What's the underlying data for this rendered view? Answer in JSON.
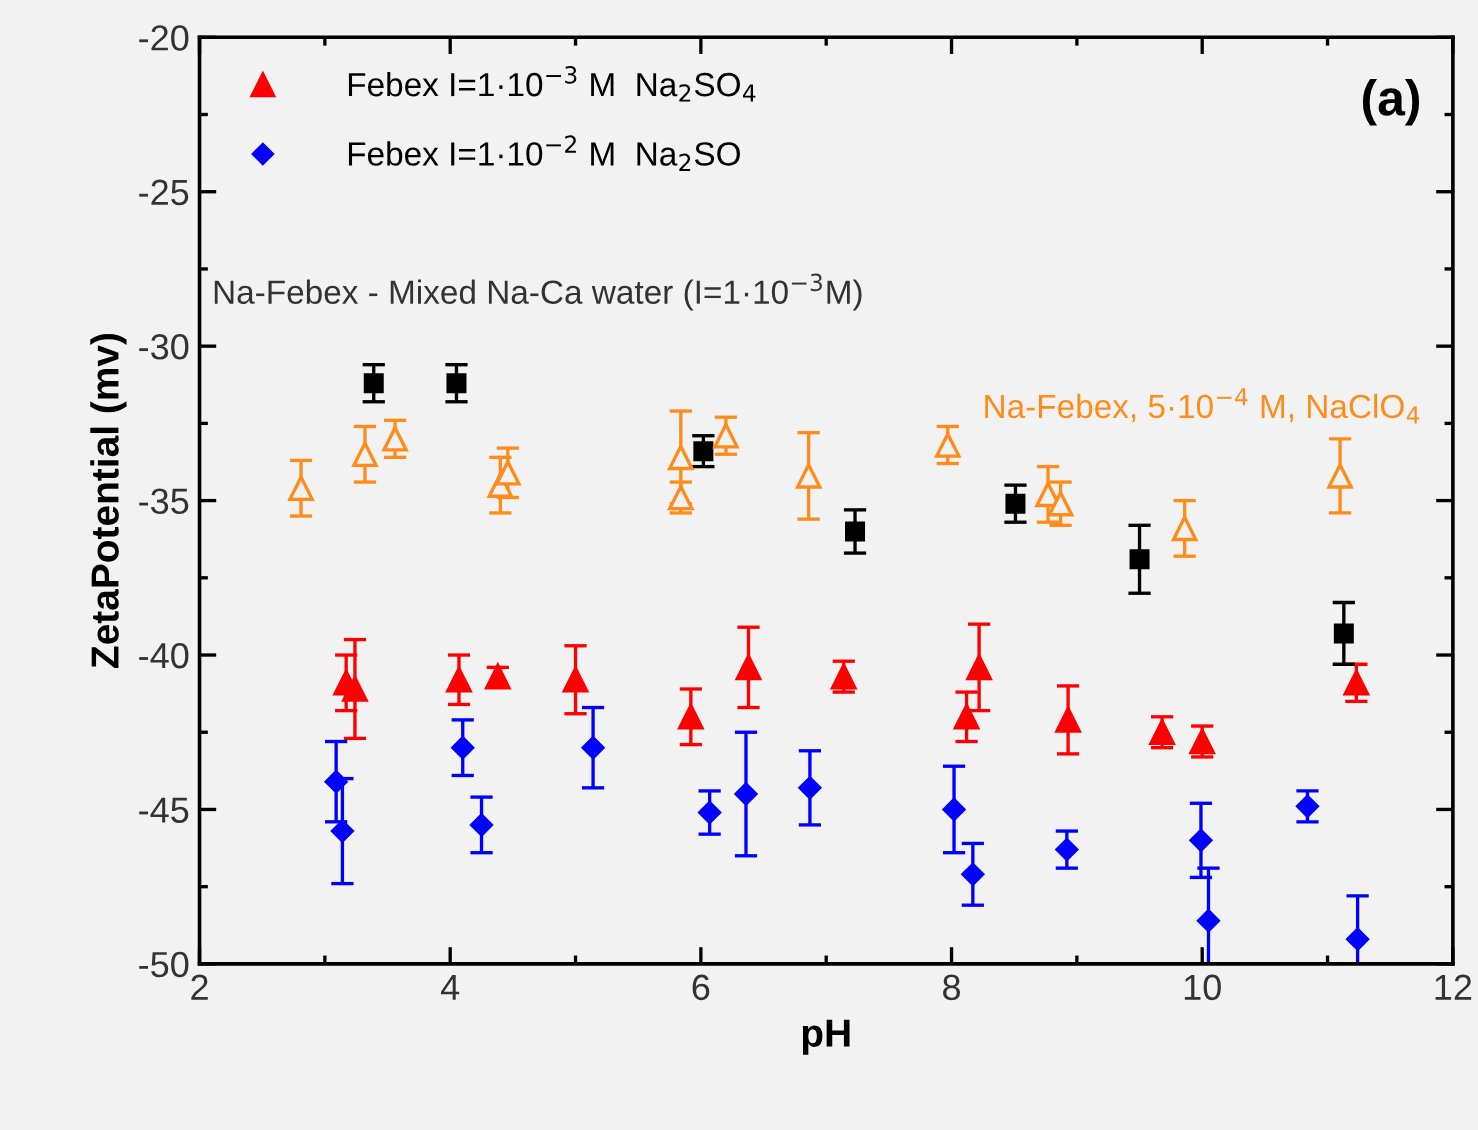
{
  "chart_data": {
    "type": "scatter",
    "xlabel": "pH",
    "ylabel": "ZetaPotential (mv)",
    "xlim": [
      2,
      12
    ],
    "xticks": [
      2,
      4,
      6,
      8,
      10,
      12
    ],
    "ylim": [
      -50,
      -20
    ],
    "yticks": [
      -50,
      -45,
      -40,
      -35,
      -30,
      -25,
      -20
    ],
    "grid": false,
    "legend": "top left",
    "annotations": [
      "(a)",
      "Na-Febex - Mixed Na-Ca water (I=1·10$^{−3}$M)",
      "Na-Febex, 5·10$^{−4}$ M, NaClO$_{4}$"
    ],
    "series": [
      {
        "name": "Febex I=1·10$^{−3}$ M  Na$_{2}$SO$_{4}$",
        "color": "#ff0000",
        "marker": "triangle",
        "x": [
          3.17,
          3.24,
          4.07,
          4.38,
          5.0,
          5.92,
          6.38,
          7.14,
          8.12,
          8.22,
          8.93,
          9.68,
          10.0,
          11.23
        ],
        "values": [
          -40.9,
          -41.1,
          -40.8,
          -40.7,
          -40.8,
          -42.0,
          -40.4,
          -40.7,
          -42.0,
          -40.4,
          -42.1,
          -42.5,
          -42.8,
          -40.9
        ],
        "errors": [
          0.9,
          1.6,
          0.8,
          0.3,
          1.1,
          0.9,
          1.3,
          0.5,
          0.8,
          1.4,
          1.1,
          0.5,
          0.5,
          0.6
        ]
      },
      {
        "name": "Febex I=1·10$^{−2}$ M  Na$_{2}$SO",
        "color": "#0000ff",
        "marker": "diamond",
        "x": [
          3.09,
          3.14,
          4.1,
          4.25,
          5.14,
          6.07,
          6.36,
          6.87,
          8.02,
          8.17,
          8.92,
          9.99,
          10.05,
          10.84,
          11.24
        ],
        "values": [
          -44.1,
          -45.7,
          -43.0,
          -45.5,
          -43.0,
          -45.1,
          -44.5,
          -44.3,
          -45.0,
          -47.1,
          -46.3,
          -46.0,
          -48.6,
          -44.9,
          -49.2
        ],
        "errors": [
          1.3,
          1.7,
          0.9,
          0.9,
          1.3,
          0.7,
          2.0,
          1.2,
          1.4,
          1.0,
          0.6,
          1.2,
          [
            -50,
            -46.9
          ],
          0.5,
          [
            -50,
            -47.8
          ]
        ]
      },
      {
        "color": "#000000",
        "marker": "square",
        "x": [
          3.39,
          4.05,
          6.02,
          7.23,
          8.51,
          9.5,
          11.13
        ],
        "values": [
          -31.2,
          -31.2,
          -33.4,
          -36.0,
          -35.1,
          -36.9,
          -39.3
        ],
        "errors": [
          0.6,
          0.6,
          0.5,
          0.7,
          0.6,
          1.1,
          1.0
        ]
      },
      {
        "color": "#ff8c1a",
        "marker": "triangle",
        "x": [
          2.81,
          3.32,
          3.56,
          4.4,
          4.46,
          5.84,
          5.84,
          6.2,
          6.86,
          7.97,
          8.77,
          8.87,
          9.86,
          11.1
        ],
        "values": [
          -34.6,
          -33.5,
          -33.0,
          -34.5,
          -34.1,
          -33.6,
          -34.9,
          -32.9,
          -34.2,
          -33.2,
          -34.8,
          -35.1,
          -35.9,
          -34.2
        ],
        "errors": [
          0.9,
          0.9,
          0.6,
          0.9,
          0.8,
          1.5,
          0.5,
          0.6,
          1.4,
          0.6,
          0.9,
          0.7,
          0.9,
          1.2
        ]
      }
    ]
  }
}
